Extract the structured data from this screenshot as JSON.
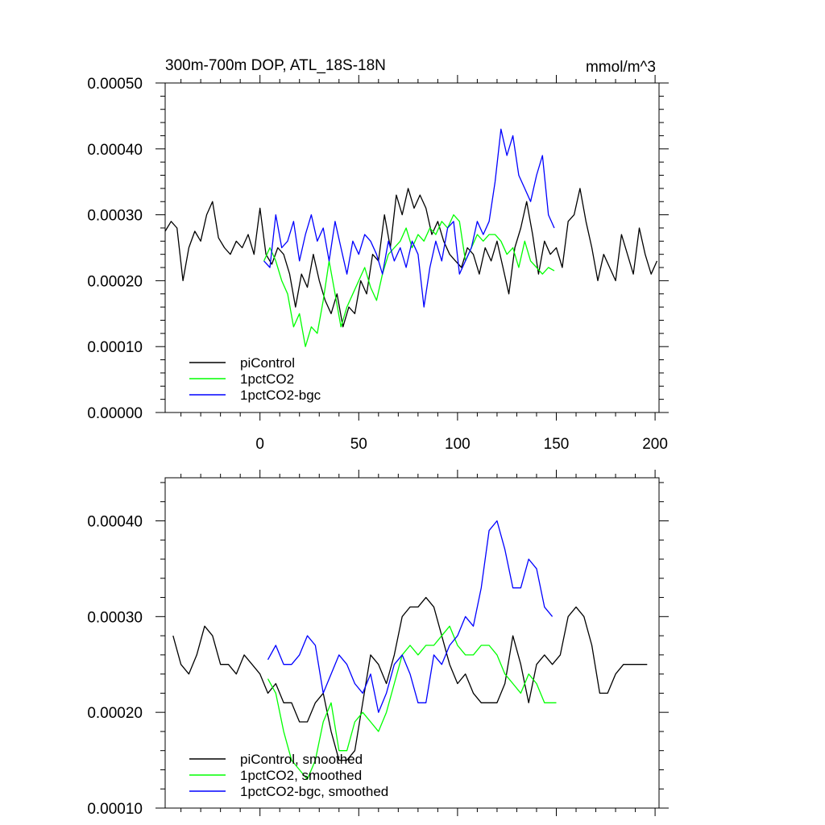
{
  "chart_data": [
    {
      "type": "line",
      "title": "300m-700m DOP, ATL_18S-18N",
      "units": "mmol/m^3",
      "xlim": [
        -48,
        202
      ],
      "ylim": [
        0,
        0.0005
      ],
      "xticks": [
        0,
        50,
        100,
        150,
        200
      ],
      "xtick_labels": [
        "0",
        "50",
        "100",
        "150",
        "200"
      ],
      "yticks": [
        0,
        0.0001,
        0.0002,
        0.0003,
        0.0004,
        0.0005
      ],
      "ytick_labels": [
        "0.00000",
        "0.00010",
        "0.00020",
        "0.00030",
        "0.00040",
        "0.00050"
      ],
      "legend_position": "bottom-left",
      "series": [
        {
          "name": "piControl",
          "color": "#000000",
          "x": [
            -48,
            -45,
            -42,
            -39,
            -36,
            -33,
            -30,
            -27,
            -24,
            -21,
            -18,
            -15,
            -12,
            -9,
            -6,
            -3,
            0,
            3,
            6,
            9,
            12,
            15,
            18,
            21,
            24,
            27,
            30,
            33,
            36,
            39,
            42,
            45,
            48,
            51,
            54,
            57,
            60,
            63,
            66,
            69,
            72,
            75,
            78,
            81,
            84,
            87,
            90,
            93,
            96,
            99,
            102,
            105,
            108,
            111,
            114,
            117,
            120,
            123,
            126,
            129,
            132,
            135,
            138,
            141,
            144,
            147,
            150,
            153,
            156,
            159,
            162,
            165,
            168,
            171,
            174,
            177,
            180,
            183,
            186,
            189,
            192,
            195,
            198,
            201
          ],
          "y": [
            0.000275,
            0.00029,
            0.00028,
            0.0002,
            0.00025,
            0.000275,
            0.00026,
            0.0003,
            0.00032,
            0.000265,
            0.00025,
            0.00024,
            0.00026,
            0.00025,
            0.00027,
            0.00024,
            0.00031,
            0.00024,
            0.000225,
            0.00025,
            0.00024,
            0.00021,
            0.00016,
            0.00021,
            0.00019,
            0.00024,
            0.0002,
            0.00017,
            0.00015,
            0.00018,
            0.00013,
            0.00016,
            0.00015,
            0.0002,
            0.00018,
            0.00024,
            0.00023,
            0.0003,
            0.00025,
            0.00033,
            0.0003,
            0.00034,
            0.00031,
            0.00033,
            0.00031,
            0.00027,
            0.00029,
            0.00026,
            0.00024,
            0.00023,
            0.00022,
            0.00025,
            0.00024,
            0.00021,
            0.00025,
            0.00023,
            0.00026,
            0.00022,
            0.00018,
            0.00025,
            0.00028,
            0.00032,
            0.00027,
            0.00021,
            0.00026,
            0.00024,
            0.00025,
            0.00022,
            0.00029,
            0.0003,
            0.00034,
            0.00029,
            0.00025,
            0.0002,
            0.00024,
            0.00022,
            0.0002,
            0.00027,
            0.00024,
            0.00021,
            0.00028,
            0.00024,
            0.00021,
            0.00023
          ]
        },
        {
          "name": "1pctCO2",
          "color": "#00ff00",
          "x": [
            2,
            5,
            8,
            11,
            14,
            17,
            20,
            23,
            26,
            29,
            32,
            35,
            38,
            41,
            44,
            47,
            50,
            53,
            56,
            59,
            62,
            65,
            68,
            71,
            74,
            77,
            80,
            83,
            86,
            89,
            92,
            95,
            98,
            101,
            104,
            107,
            110,
            113,
            116,
            119,
            122,
            125,
            128,
            131,
            134,
            137,
            140,
            143,
            146,
            149
          ],
          "y": [
            0.00023,
            0.00025,
            0.00023,
            0.0002,
            0.00018,
            0.00013,
            0.00015,
            0.0001,
            0.00013,
            0.00012,
            0.00017,
            0.00023,
            0.00018,
            0.00013,
            0.00016,
            0.00018,
            0.0002,
            0.00022,
            0.00019,
            0.00017,
            0.00021,
            0.00024,
            0.00025,
            0.00026,
            0.00028,
            0.00025,
            0.00027,
            0.00026,
            0.00028,
            0.00027,
            0.00029,
            0.00028,
            0.0003,
            0.00029,
            0.00023,
            0.00025,
            0.00027,
            0.00026,
            0.00027,
            0.00027,
            0.00026,
            0.00024,
            0.00025,
            0.00022,
            0.00026,
            0.00023,
            0.00022,
            0.00021,
            0.00022,
            0.000215
          ]
        },
        {
          "name": "1pctCO2-bgc",
          "color": "#0000ff",
          "x": [
            2,
            5,
            8,
            11,
            14,
            17,
            20,
            23,
            26,
            29,
            32,
            35,
            38,
            41,
            44,
            47,
            50,
            53,
            56,
            59,
            62,
            65,
            68,
            71,
            74,
            77,
            80,
            83,
            86,
            89,
            92,
            95,
            98,
            101,
            104,
            107,
            110,
            113,
            116,
            119,
            122,
            125,
            128,
            131,
            134,
            137,
            140,
            143,
            146,
            149
          ],
          "y": [
            0.00023,
            0.00022,
            0.0003,
            0.00025,
            0.00026,
            0.00029,
            0.00023,
            0.00027,
            0.0003,
            0.00026,
            0.00028,
            0.00023,
            0.00029,
            0.00025,
            0.00021,
            0.00026,
            0.00024,
            0.00027,
            0.00026,
            0.00024,
            0.00021,
            0.00026,
            0.00023,
            0.00025,
            0.00022,
            0.00026,
            0.00024,
            0.00016,
            0.00022,
            0.00026,
            0.00023,
            0.00028,
            0.00029,
            0.00021,
            0.00023,
            0.00025,
            0.00029,
            0.00027,
            0.00029,
            0.00035,
            0.00043,
            0.00039,
            0.00042,
            0.00036,
            0.00034,
            0.00032,
            0.00036,
            0.00039,
            0.0003,
            0.00028
          ]
        }
      ]
    },
    {
      "type": "line",
      "title": "",
      "xlim": [
        -48,
        202
      ],
      "ylim": [
        0.0001,
        0.000445
      ],
      "xticks": [
        0,
        50,
        100,
        150,
        200
      ],
      "yticks": [
        0.0001,
        0.0002,
        0.0003,
        0.0004
      ],
      "ytick_labels": [
        "0.00010",
        "0.00020",
        "0.00030",
        "0.00040"
      ],
      "legend_position": "bottom-left",
      "series": [
        {
          "name": "piControl, smoothed",
          "color": "#000000",
          "x": [
            -44,
            -40,
            -36,
            -32,
            -28,
            -24,
            -20,
            -16,
            -12,
            -8,
            -4,
            0,
            4,
            8,
            12,
            16,
            20,
            24,
            28,
            32,
            36,
            40,
            44,
            48,
            52,
            56,
            60,
            64,
            68,
            72,
            76,
            80,
            84,
            88,
            92,
            96,
            100,
            104,
            108,
            112,
            116,
            120,
            124,
            128,
            132,
            136,
            140,
            144,
            148,
            152,
            156,
            160,
            164,
            168,
            172,
            176,
            180,
            184,
            188,
            192,
            196
          ],
          "y": [
            0.00028,
            0.00025,
            0.00024,
            0.00026,
            0.00029,
            0.00028,
            0.00025,
            0.00025,
            0.00024,
            0.00026,
            0.00025,
            0.00024,
            0.00022,
            0.00023,
            0.00021,
            0.00021,
            0.00019,
            0.00019,
            0.00021,
            0.00022,
            0.00018,
            0.00015,
            0.00015,
            0.00016,
            0.00021,
            0.00026,
            0.00025,
            0.00023,
            0.00026,
            0.0003,
            0.00031,
            0.00031,
            0.00032,
            0.00031,
            0.00028,
            0.00025,
            0.00023,
            0.00024,
            0.00022,
            0.00021,
            0.00021,
            0.00021,
            0.00023,
            0.00028,
            0.00025,
            0.00021,
            0.00025,
            0.00026,
            0.00025,
            0.00026,
            0.0003,
            0.00031,
            0.0003,
            0.00027,
            0.00022,
            0.00022,
            0.00024,
            0.00025,
            0.00025,
            0.00025,
            0.00025
          ]
        },
        {
          "name": "1pctCO2, smoothed",
          "color": "#00ff00",
          "x": [
            4,
            8,
            12,
            16,
            20,
            24,
            28,
            32,
            36,
            40,
            44,
            48,
            52,
            56,
            60,
            64,
            68,
            72,
            76,
            80,
            84,
            88,
            92,
            96,
            100,
            104,
            108,
            112,
            116,
            120,
            124,
            128,
            132,
            136,
            140,
            144,
            148,
            150
          ],
          "y": [
            0.000235,
            0.00022,
            0.00018,
            0.00015,
            0.00014,
            0.00013,
            0.00015,
            0.00019,
            0.00021,
            0.00016,
            0.00016,
            0.00019,
            0.0002,
            0.00019,
            0.00018,
            0.0002,
            0.00023,
            0.00026,
            0.00027,
            0.00026,
            0.00027,
            0.00027,
            0.00028,
            0.00029,
            0.00027,
            0.00026,
            0.00026,
            0.00027,
            0.00027,
            0.00026,
            0.00024,
            0.00023,
            0.00022,
            0.00024,
            0.00023,
            0.00021,
            0.00021,
            0.00021
          ]
        },
        {
          "name": "1pctCO2-bgc, smoothed",
          "color": "#0000ff",
          "x": [
            4,
            8,
            12,
            16,
            20,
            24,
            28,
            32,
            36,
            40,
            44,
            48,
            52,
            56,
            60,
            64,
            68,
            72,
            76,
            80,
            84,
            88,
            92,
            96,
            100,
            104,
            108,
            112,
            116,
            120,
            124,
            128,
            132,
            136,
            140,
            144,
            148
          ],
          "y": [
            0.000255,
            0.00027,
            0.00025,
            0.00025,
            0.00026,
            0.00028,
            0.00027,
            0.00022,
            0.00024,
            0.00026,
            0.00025,
            0.00023,
            0.00022,
            0.00024,
            0.0002,
            0.00022,
            0.00025,
            0.00026,
            0.00024,
            0.00021,
            0.00021,
            0.00026,
            0.00025,
            0.00027,
            0.00028,
            0.0003,
            0.00029,
            0.00033,
            0.00039,
            0.0004,
            0.00037,
            0.00033,
            0.00033,
            0.00036,
            0.00035,
            0.00031,
            0.0003
          ]
        }
      ]
    }
  ]
}
